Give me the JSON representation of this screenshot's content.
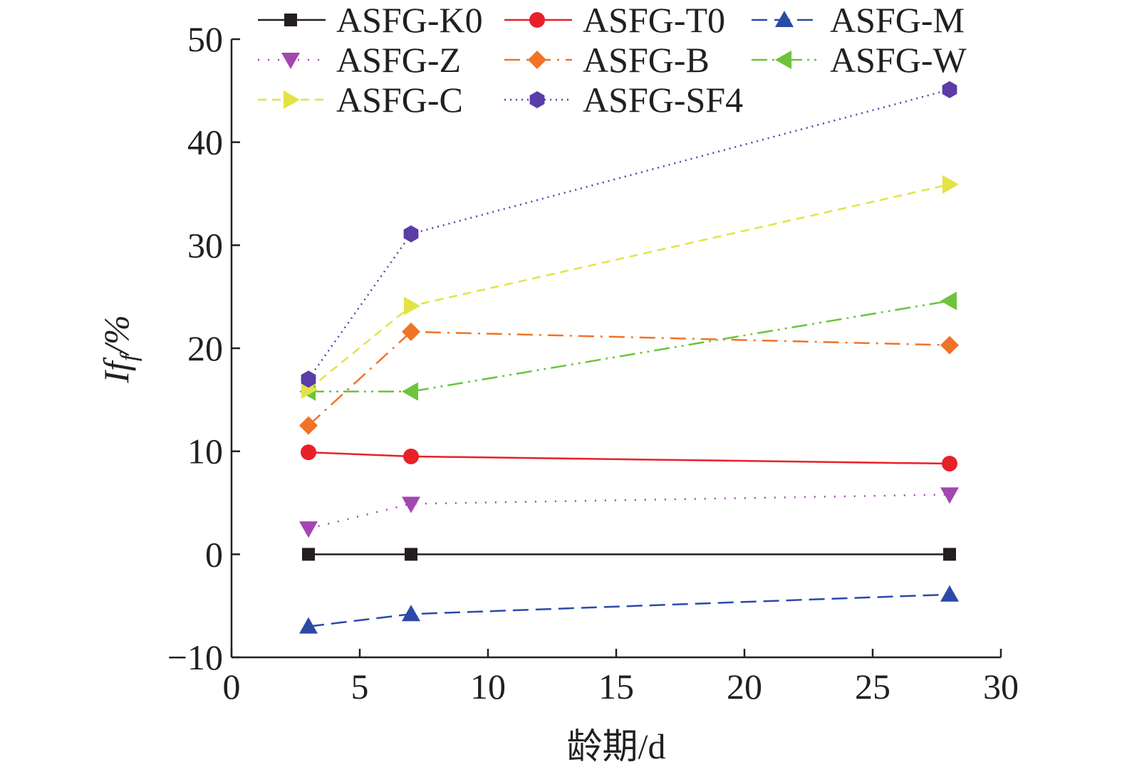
{
  "chart_data": {
    "type": "line",
    "title": "",
    "xlabel": "龄期/d",
    "ylabel_main": "If",
    "ylabel_sub": "f",
    "ylabel_unit": "/%",
    "xlim": [
      0,
      30
    ],
    "ylim": [
      -10,
      50
    ],
    "xticks": [
      0,
      5,
      10,
      15,
      20,
      25,
      30
    ],
    "yticks": [
      -10,
      0,
      10,
      20,
      30,
      40,
      50
    ],
    "ytick_labels": [
      "−10",
      "0",
      "10",
      "20",
      "30",
      "40",
      "50"
    ],
    "grid": false,
    "legend_position": "top",
    "x": [
      3,
      7,
      28
    ],
    "series": [
      {
        "name": "ASFG-K0",
        "values": [
          0,
          0,
          0
        ],
        "color": "#231f20",
        "marker": "square",
        "dash": "solid"
      },
      {
        "name": "ASFG-T0",
        "values": [
          9.9,
          9.5,
          8.8
        ],
        "color": "#e8202a",
        "marker": "circle",
        "dash": "solid"
      },
      {
        "name": "ASFG-M",
        "values": [
          -7.0,
          -5.8,
          -3.9
        ],
        "color": "#2b4aa8",
        "marker": "triangle-up",
        "dash": "dash"
      },
      {
        "name": "ASFG-Z",
        "values": [
          2.5,
          4.9,
          5.8
        ],
        "color": "#a347b0",
        "marker": "triangle-down",
        "dash": "dot"
      },
      {
        "name": "ASFG-B",
        "values": [
          12.5,
          21.6,
          20.3
        ],
        "color": "#f07327",
        "marker": "diamond",
        "dash": "dashdot"
      },
      {
        "name": "ASFG-W",
        "values": [
          15.8,
          15.8,
          24.6
        ],
        "color": "#6cc43b",
        "marker": "triangle-left",
        "dash": "dashdotdot"
      },
      {
        "name": "ASFG-C",
        "values": [
          16.0,
          24.1,
          35.9
        ],
        "color": "#e3e345",
        "marker": "triangle-right",
        "dash": "shortdash"
      },
      {
        "name": "ASFG-SF4",
        "values": [
          17.0,
          31.1,
          45.1
        ],
        "color": "#5b3ca8",
        "marker": "hexagon",
        "dash": "finedot"
      }
    ]
  }
}
